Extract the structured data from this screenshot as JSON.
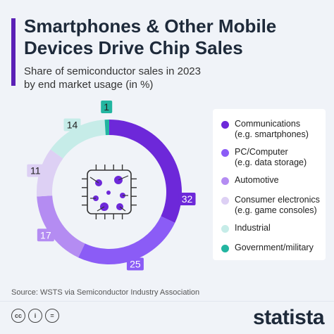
{
  "chart_data": {
    "type": "pie",
    "title": "Smartphones & Other Mobile Devices Drive Chip Sales",
    "subtitle": "Share of semiconductor sales in 2023 by end market usage (in %)",
    "categories": [
      "Communications (e.g. smartphones)",
      "PC/Computer (e.g. data storage)",
      "Automotive",
      "Consumer electronics (e.g. game consoles)",
      "Industrial",
      "Government/military"
    ],
    "values": [
      32,
      25,
      17,
      11,
      14,
      1
    ],
    "colors": [
      "#6d28d9",
      "#8b5cf6",
      "#b48cf2",
      "#ddd0f4",
      "#c6ece8",
      "#22b5a0"
    ],
    "legend_placement": "right",
    "grid": false
  },
  "legend": [
    {
      "label": "Communications",
      "sub": "(e.g. smartphones)"
    },
    {
      "label": "PC/Computer",
      "sub": "(e.g. data storage)"
    },
    {
      "label": "Automotive",
      "sub": ""
    },
    {
      "label": "Consumer electronics",
      "sub": "(e.g. game consoles)"
    },
    {
      "label": "Industrial",
      "sub": ""
    },
    {
      "label": "Government/military",
      "sub": ""
    }
  ],
  "title_line1": "Smartphones & Other Mobile",
  "title_line2": "Devices Drive Chip Sales",
  "subtitle_line1": "Share of semiconductor sales in 2023",
  "subtitle_line2": "by end market usage (in %)",
  "source": "Source: WSTS via Semiconductor Industry Association",
  "brand": "statista",
  "icons": [
    "chip-icon",
    "cc-icon",
    "by-icon",
    "equal-icon"
  ],
  "cc_icons": [
    "cc",
    "i",
    "="
  ]
}
